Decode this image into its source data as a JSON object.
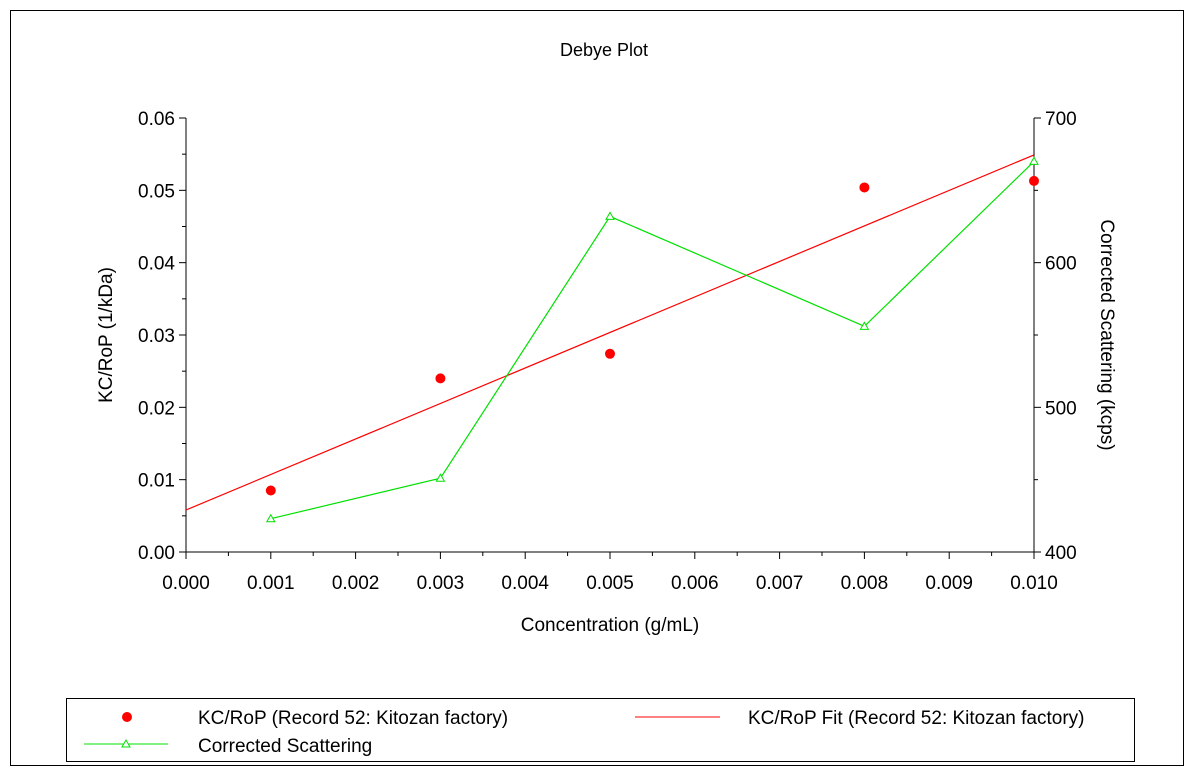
{
  "chart_data": {
    "type": "scatter",
    "title": "Debye Plot",
    "xlabel": "Concentration (g/mL)",
    "ylabel_left": "KC/RoP (1/kDa)",
    "ylabel_right": "Corrected Scattering (kcps)",
    "xlim": [
      0.0,
      0.01
    ],
    "ylim_left": [
      0.0,
      0.06
    ],
    "ylim_right": [
      400,
      700
    ],
    "x_ticks": [
      "0.000",
      "0.001",
      "0.002",
      "0.003",
      "0.004",
      "0.005",
      "0.006",
      "0.007",
      "0.008",
      "0.009",
      "0.010"
    ],
    "y_ticks_left": [
      "0.00",
      "0.01",
      "0.02",
      "0.03",
      "0.04",
      "0.05",
      "0.06"
    ],
    "y_ticks_right": [
      "400",
      "500",
      "600",
      "700"
    ],
    "grid": false,
    "legend_position": "bottom",
    "series": [
      {
        "name": "KC/RoP (Record 52: Kitozan factory)",
        "kind": "points",
        "axis": "left",
        "color": "#ff0000",
        "x": [
          0.001,
          0.003,
          0.005,
          0.008,
          0.01
        ],
        "y": [
          0.0085,
          0.024,
          0.0274,
          0.0504,
          0.0513
        ]
      },
      {
        "name": "KC/RoP Fit (Record 52: Kitozan factory)",
        "kind": "line",
        "axis": "left",
        "color": "#ff0000",
        "x": [
          0.0,
          0.01
        ],
        "y": [
          0.0058,
          0.0549
        ]
      },
      {
        "name": "Corrected Scattering",
        "kind": "line-triangle",
        "axis": "right",
        "color": "#00e000",
        "x": [
          0.001,
          0.003,
          0.005,
          0.008,
          0.01
        ],
        "y": [
          423,
          451,
          632,
          556,
          670
        ]
      }
    ]
  }
}
